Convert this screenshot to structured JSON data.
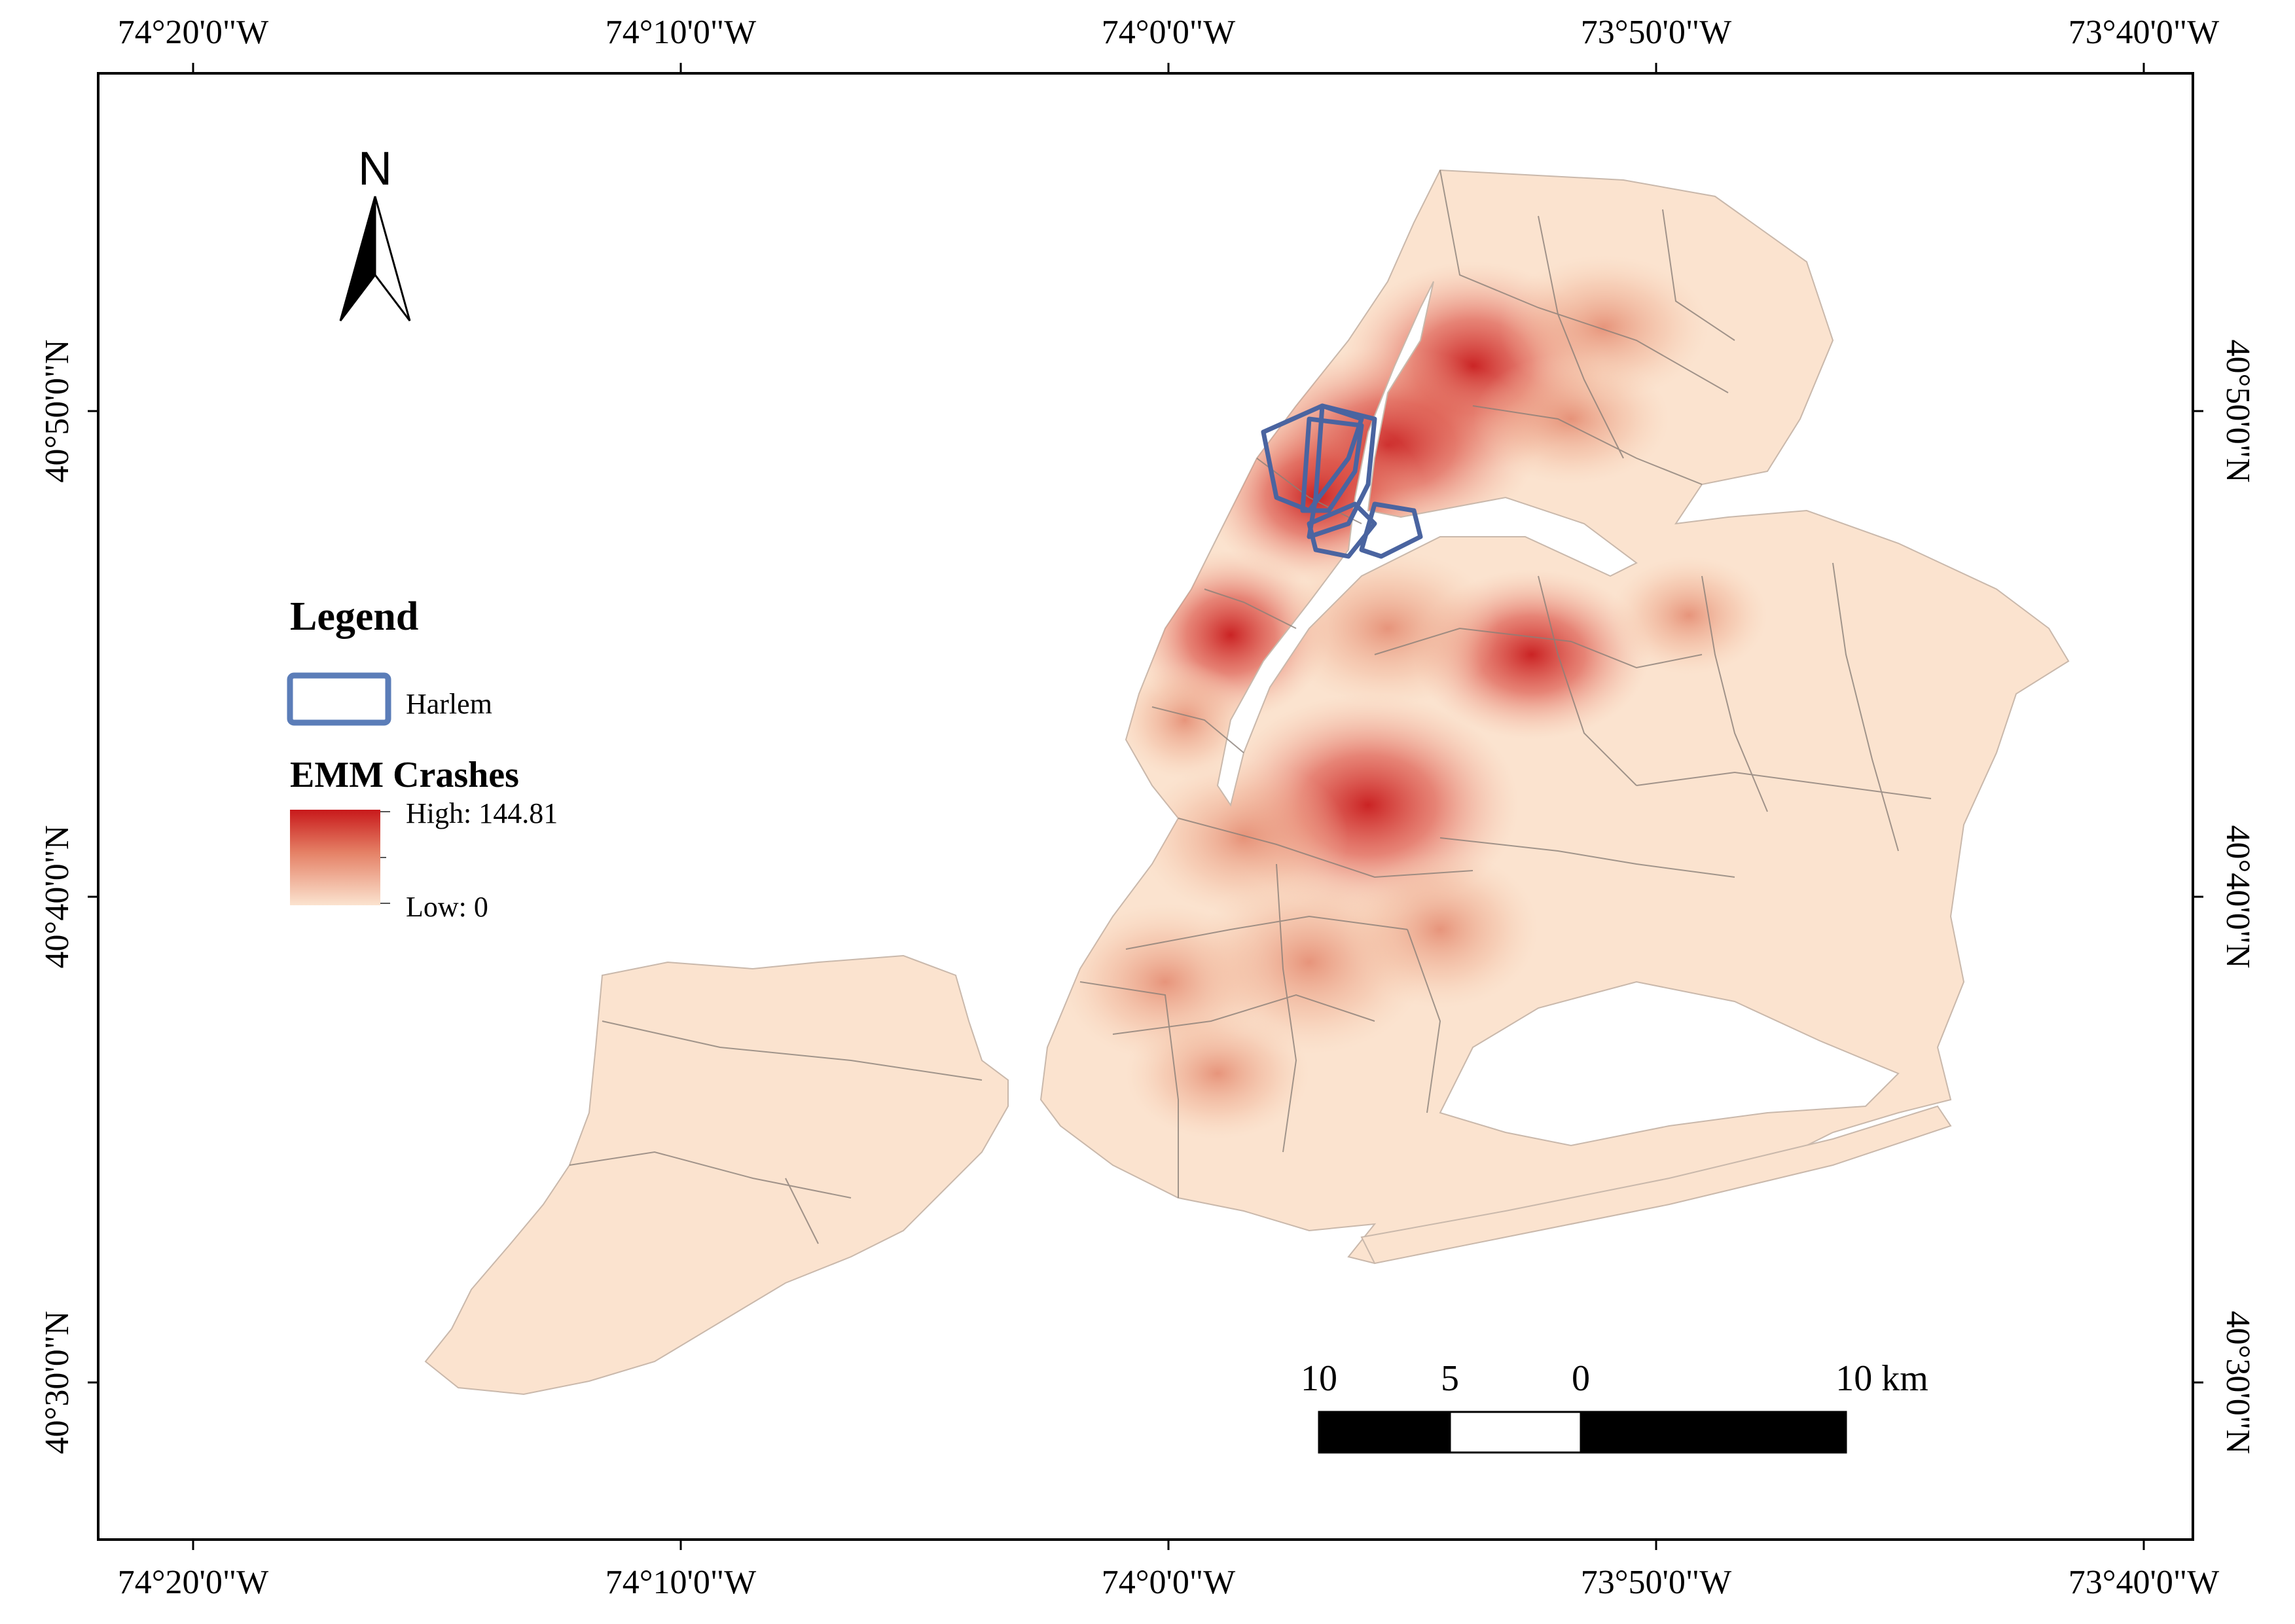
{
  "map": {
    "top_ticks": [
      "74°20'0\"W",
      "74°10'0\"W",
      "74°0'0\"W",
      "73°50'0\"W",
      "73°40'0\"W"
    ],
    "bottom_ticks": [
      "74°20'0\"W",
      "74°10'0\"W",
      "74°0'0\"W",
      "73°50'0\"W",
      "73°40'0\"W"
    ],
    "left_ticks": [
      "40°50'0\"N",
      "40°40'0\"N",
      "40°30'0\"N"
    ],
    "right_ticks": [
      "40°50'0\"N",
      "40°40'0\"N",
      "40°30'0\"N"
    ],
    "north_label": "N",
    "legend": {
      "title": "Legend",
      "harlem_label": "Harlem",
      "layer_title": "EMM Crashes",
      "high_label": "High: 144.81",
      "low_label": "Low: 0",
      "harlem_color": "#5b7db8",
      "high_color": "#c8191b",
      "low_color": "#fbe3cf"
    },
    "scale_bar": {
      "labels": [
        "10",
        "5",
        "0",
        "10 km"
      ]
    },
    "colors": {
      "land": "#fbe3cf",
      "boundary": "#8a7f78",
      "hot": "#c8191b"
    }
  }
}
